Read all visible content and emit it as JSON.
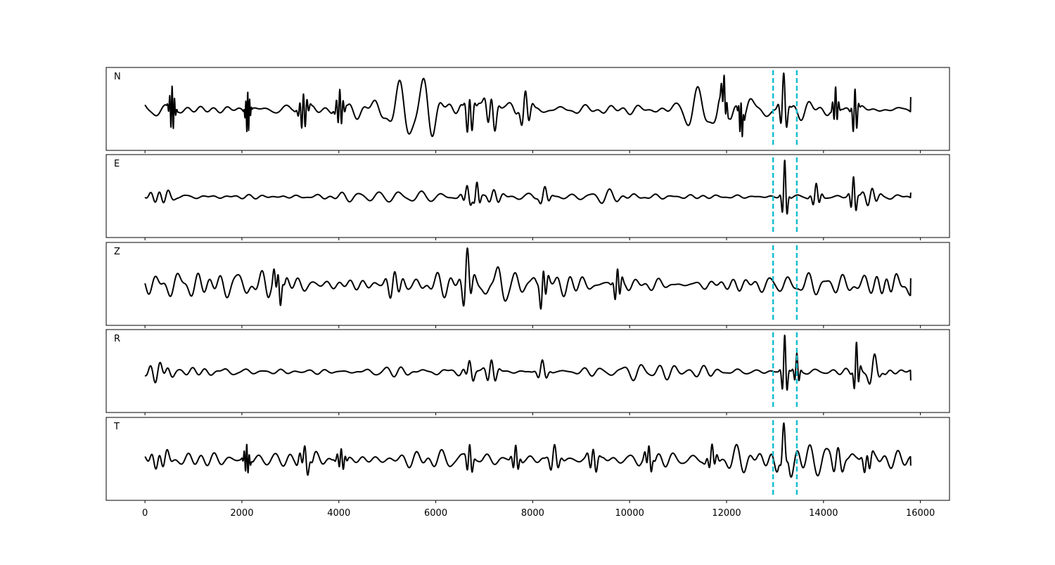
{
  "chart_data": {
    "type": "line",
    "description": "Five stacked seismogram traces sharing one x axis, with two vertical dashed markers",
    "x_range": [
      0,
      15800
    ],
    "xlim": [
      -800,
      16600
    ],
    "x_ticks": [
      0,
      2000,
      4000,
      6000,
      8000,
      10000,
      12000,
      14000,
      16000
    ],
    "x_tick_labels": [
      "0",
      "2000",
      "4000",
      "6000",
      "8000",
      "10000",
      "12000",
      "14000",
      "16000"
    ],
    "markers": [
      {
        "x": 12960,
        "style": "dashed",
        "color": "#17becf"
      },
      {
        "x": 13450,
        "style": "dashed",
        "color": "#17becf"
      }
    ],
    "trace_color": "#000000",
    "panels": [
      {
        "name": "N",
        "events": [
          {
            "t": 560,
            "amp": 1.0,
            "w": 60,
            "f": 1.6
          },
          {
            "t": 2120,
            "amp": 0.95,
            "w": 50,
            "f": 1.7
          },
          {
            "t": 3270,
            "amp": 0.8,
            "w": 90,
            "f": 1.6
          },
          {
            "t": 4020,
            "amp": 0.8,
            "w": 80,
            "f": 1.5
          },
          {
            "t": 6700,
            "amp": 0.9,
            "w": 90,
            "f": 1.1
          },
          {
            "t": 7150,
            "amp": 0.85,
            "w": 120,
            "f": 1.0
          },
          {
            "t": 7850,
            "amp": 0.8,
            "w": 120,
            "f": 1.0
          },
          {
            "t": 11950,
            "amp": 0.75,
            "w": 60,
            "f": 1.3
          },
          {
            "t": 12300,
            "amp": 0.8,
            "w": 50,
            "f": 1.3
          },
          {
            "t": 13180,
            "amp": 1.45,
            "w": 80,
            "f": 0.8
          },
          {
            "t": 14250,
            "amp": 0.8,
            "w": 60,
            "f": 1.2
          },
          {
            "t": 14650,
            "amp": 1.1,
            "w": 60,
            "f": 1.0
          }
        ],
        "base_amp": 0.25,
        "seed": 11,
        "end_tail": 0.55
      },
      {
        "name": "E",
        "events": [
          {
            "t": 300,
            "amp": 0.3,
            "w": 250,
            "f": 1.8
          },
          {
            "t": 6650,
            "amp": 0.55,
            "w": 100,
            "f": 0.8
          },
          {
            "t": 6850,
            "amp": 0.6,
            "w": 80,
            "f": 0.8
          },
          {
            "t": 7200,
            "amp": 0.45,
            "w": 150,
            "f": 0.9
          },
          {
            "t": 8250,
            "amp": 0.4,
            "w": 120,
            "f": 0.9
          },
          {
            "t": 13200,
            "amp": 1.7,
            "w": 60,
            "f": 0.7
          },
          {
            "t": 13850,
            "amp": 0.55,
            "w": 100,
            "f": 1.0
          },
          {
            "t": 14620,
            "amp": 1.0,
            "w": 70,
            "f": 0.8
          },
          {
            "t": 15000,
            "amp": 0.45,
            "w": 150,
            "f": 1.0
          }
        ],
        "base_amp": 0.1,
        "seed": 23,
        "end_tail": 0.2
      },
      {
        "name": "Z",
        "events": [
          {
            "t": 2750,
            "amp": 0.4,
            "w": 100,
            "f": 1.4
          },
          {
            "t": 5150,
            "amp": 0.4,
            "w": 180,
            "f": 1.3
          },
          {
            "t": 6650,
            "amp": 1.45,
            "w": 90,
            "f": 0.6
          },
          {
            "t": 7300,
            "amp": 0.55,
            "w": 200,
            "f": 1.0
          },
          {
            "t": 8220,
            "amp": 0.65,
            "w": 80,
            "f": 0.9
          },
          {
            "t": 9750,
            "amp": 0.55,
            "w": 80,
            "f": 1.0
          },
          {
            "t": 15300,
            "amp": 0.45,
            "w": 200,
            "f": 1.1
          }
        ],
        "base_amp": 0.22,
        "seed": 37,
        "end_tail": 0.2
      },
      {
        "name": "R",
        "events": [
          {
            "t": 300,
            "amp": 0.3,
            "w": 250,
            "f": 1.8
          },
          {
            "t": 6700,
            "amp": 0.45,
            "w": 100,
            "f": 0.8
          },
          {
            "t": 7150,
            "amp": 0.55,
            "w": 120,
            "f": 0.9
          },
          {
            "t": 8200,
            "amp": 0.4,
            "w": 120,
            "f": 0.9
          },
          {
            "t": 13200,
            "amp": 1.5,
            "w": 60,
            "f": 0.7
          },
          {
            "t": 13450,
            "amp": 0.7,
            "w": 60,
            "f": 0.8
          },
          {
            "t": 14680,
            "amp": 1.1,
            "w": 60,
            "f": 0.8
          },
          {
            "t": 15050,
            "amp": 0.5,
            "w": 150,
            "f": 1.0
          }
        ],
        "base_amp": 0.1,
        "seed": 51,
        "end_tail": -0.35
      },
      {
        "name": "T",
        "events": [
          {
            "t": 300,
            "amp": 0.6,
            "w": 200,
            "f": 1.6
          },
          {
            "t": 2100,
            "amp": 1.0,
            "w": 60,
            "f": 1.5
          },
          {
            "t": 3300,
            "amp": 0.75,
            "w": 120,
            "f": 1.4
          },
          {
            "t": 4050,
            "amp": 0.7,
            "w": 90,
            "f": 1.4
          },
          {
            "t": 6700,
            "amp": 1.2,
            "w": 70,
            "f": 0.8
          },
          {
            "t": 7650,
            "amp": 0.9,
            "w": 80,
            "f": 1.0
          },
          {
            "t": 8450,
            "amp": 0.9,
            "w": 120,
            "f": 1.0
          },
          {
            "t": 9250,
            "amp": 0.9,
            "w": 100,
            "f": 1.0
          },
          {
            "t": 10400,
            "amp": 0.8,
            "w": 80,
            "f": 1.1
          },
          {
            "t": 11700,
            "amp": 0.75,
            "w": 100,
            "f": 1.2
          },
          {
            "t": 13180,
            "amp": 1.1,
            "w": 80,
            "f": 0.9
          },
          {
            "t": 14300,
            "amp": 0.8,
            "w": 150,
            "f": 1.1
          },
          {
            "t": 14900,
            "amp": 0.7,
            "w": 100,
            "f": 1.1
          }
        ],
        "base_amp": 0.3,
        "seed": 73,
        "end_tail": -0.4
      }
    ]
  }
}
